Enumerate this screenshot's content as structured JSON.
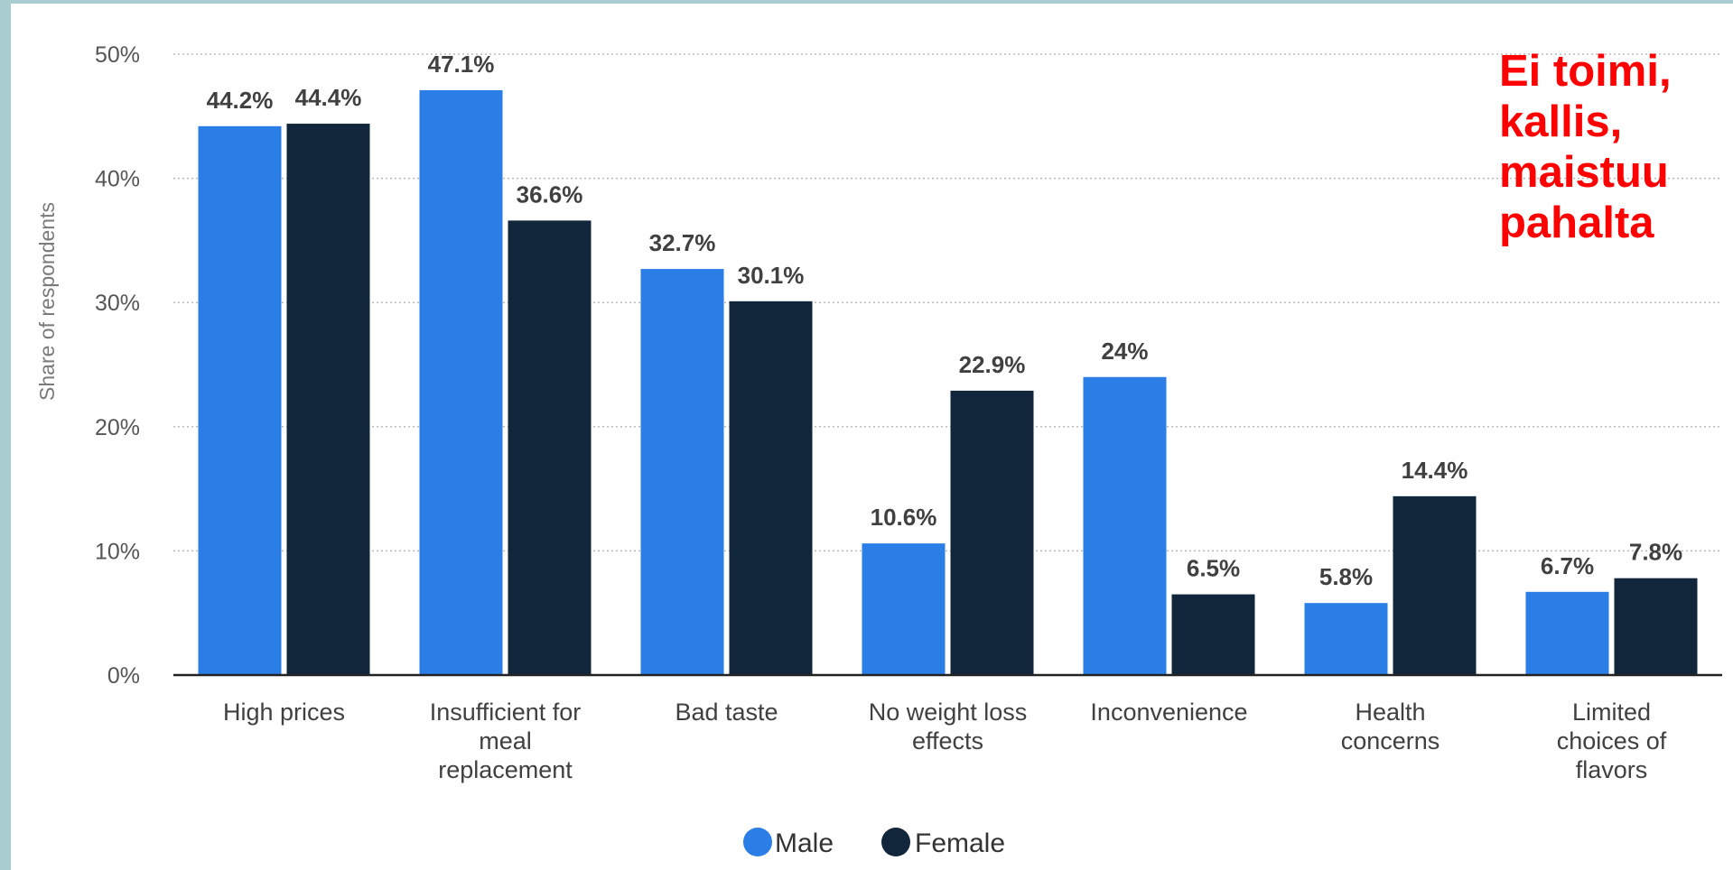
{
  "colors": {
    "male": "#2a7ee6",
    "female": "#11263a",
    "frame": "#a9ccd1",
    "annotation": "#ff0000"
  },
  "annotation_lines": [
    "Ei toimi,",
    "kallis,",
    "maistuu",
    "pahalta"
  ],
  "chart_data": {
    "type": "bar",
    "categories": [
      [
        "High prices"
      ],
      [
        "Insufficient for",
        "meal",
        "replacement"
      ],
      [
        "Bad taste"
      ],
      [
        "No weight loss",
        "effects"
      ],
      [
        "Inconvenience"
      ],
      [
        "Health",
        "concerns"
      ],
      [
        "Limited",
        "choices of",
        "flavors"
      ]
    ],
    "series": [
      {
        "name": "Male",
        "values": [
          44.2,
          47.1,
          32.7,
          10.6,
          24,
          5.8,
          6.7
        ],
        "labels": [
          "44.2%",
          "47.1%",
          "32.7%",
          "10.6%",
          "24%",
          "5.8%",
          "6.7%"
        ]
      },
      {
        "name": "Female",
        "values": [
          44.4,
          36.6,
          30.1,
          22.9,
          6.5,
          14.4,
          7.8
        ],
        "labels": [
          "44.4%",
          "36.6%",
          "30.1%",
          "22.9%",
          "6.5%",
          "14.4%",
          "7.8%"
        ]
      }
    ],
    "ylabel": "Share of respondents",
    "ylim": [
      0,
      50
    ],
    "yticks": [
      0,
      10,
      20,
      30,
      40,
      50
    ],
    "ytick_labels": [
      "0%",
      "10%",
      "20%",
      "30%",
      "40%",
      "50%"
    ],
    "grid": true,
    "legend": "bottom-center"
  }
}
